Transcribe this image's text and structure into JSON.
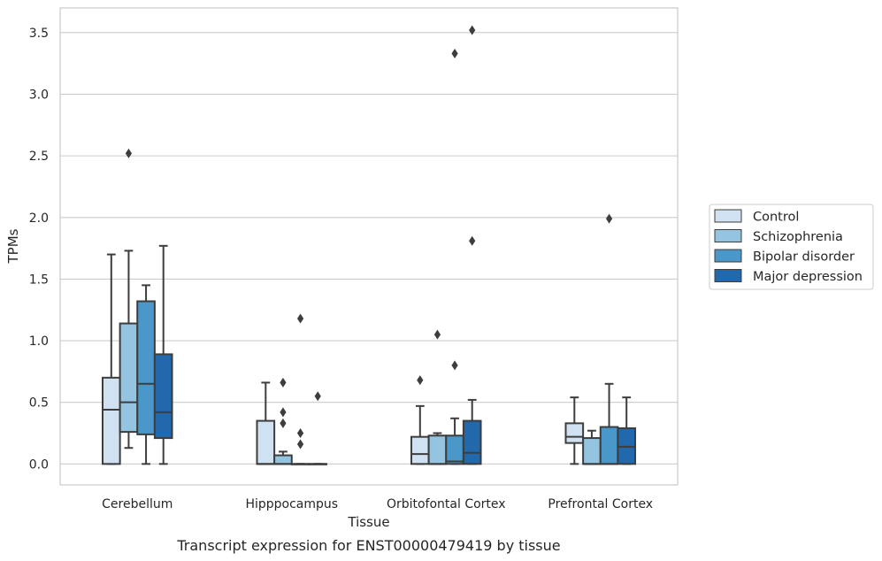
{
  "caption": "Transcript expression for ENST00000479419 by tissue",
  "chart_data": {
    "type": "box",
    "xlabel": "Tissue",
    "ylabel": "TPMs",
    "ylim": [
      -0.17,
      3.7
    ],
    "yticks": [
      "0.0",
      "0.5",
      "1.0",
      "1.5",
      "2.0",
      "2.5",
      "3.0",
      "3.5"
    ],
    "ytick_values": [
      0,
      0.5,
      1,
      1.5,
      2,
      2.5,
      3,
      3.5
    ],
    "grid": "horizontal",
    "legend_position": "right",
    "categories": [
      "Cerebellum",
      "Hipppocampus",
      "Orbitofontal Cortex",
      "Prefrontal Cortex"
    ],
    "series": [
      {
        "name": "Control",
        "color": "#d0e1f2",
        "boxes": [
          {
            "whislo": 0,
            "q1": 0,
            "med": 0.44,
            "q3": 0.7,
            "whishi": 1.7,
            "fliers": []
          },
          {
            "whislo": 0,
            "q1": 0,
            "med": 0,
            "q3": 0.35,
            "whishi": 0.66,
            "fliers": []
          },
          {
            "whislo": 0,
            "q1": 0,
            "med": 0.08,
            "q3": 0.22,
            "whishi": 0.47,
            "fliers": [
              0.68
            ]
          },
          {
            "whislo": 0,
            "q1": 0.17,
            "med": 0.22,
            "q3": 0.33,
            "whishi": 0.54,
            "fliers": []
          }
        ]
      },
      {
        "name": "Schizophrenia",
        "color": "#94c4df",
        "boxes": [
          {
            "whislo": 0.13,
            "q1": 0.26,
            "med": 0.5,
            "q3": 1.14,
            "whishi": 1.73,
            "fliers": [
              2.52
            ]
          },
          {
            "whislo": 0,
            "q1": 0,
            "med": 0,
            "q3": 0.07,
            "whishi": 0.1,
            "fliers": [
              0.66,
              0.42,
              0.33
            ]
          },
          {
            "whislo": 0,
            "q1": 0,
            "med": 0,
            "q3": 0.23,
            "whishi": 0.25,
            "fliers": [
              1.05
            ]
          },
          {
            "whislo": 0,
            "q1": 0,
            "med": 0,
            "q3": 0.21,
            "whishi": 0.27,
            "fliers": []
          }
        ]
      },
      {
        "name": "Bipolar disorder",
        "color": "#4a98c9",
        "boxes": [
          {
            "whislo": 0,
            "q1": 0.24,
            "med": 0.65,
            "q3": 1.32,
            "whishi": 1.45,
            "fliers": []
          },
          {
            "whislo": 0,
            "q1": 0,
            "med": 0,
            "q3": 0,
            "whishi": 0,
            "fliers": [
              1.18,
              0.25,
              0.16
            ]
          },
          {
            "whislo": 0,
            "q1": 0,
            "med": 0.02,
            "q3": 0.23,
            "whishi": 0.37,
            "fliers": [
              3.33,
              0.8
            ]
          },
          {
            "whislo": 0,
            "q1": 0,
            "med": 0,
            "q3": 0.3,
            "whishi": 0.65,
            "fliers": [
              1.99
            ]
          }
        ]
      },
      {
        "name": "Major depression",
        "color": "#2268ad",
        "boxes": [
          {
            "whislo": 0,
            "q1": 0.21,
            "med": 0.42,
            "q3": 0.89,
            "whishi": 1.77,
            "fliers": []
          },
          {
            "whislo": 0,
            "q1": 0,
            "med": 0,
            "q3": 0,
            "whishi": 0,
            "fliers": [
              0.55
            ]
          },
          {
            "whislo": 0,
            "q1": 0,
            "med": 0.09,
            "q3": 0.35,
            "whishi": 0.52,
            "fliers": [
              3.52,
              1.81
            ]
          },
          {
            "whislo": 0,
            "q1": 0,
            "med": 0.14,
            "q3": 0.29,
            "whishi": 0.54,
            "fliers": []
          }
        ]
      }
    ]
  }
}
